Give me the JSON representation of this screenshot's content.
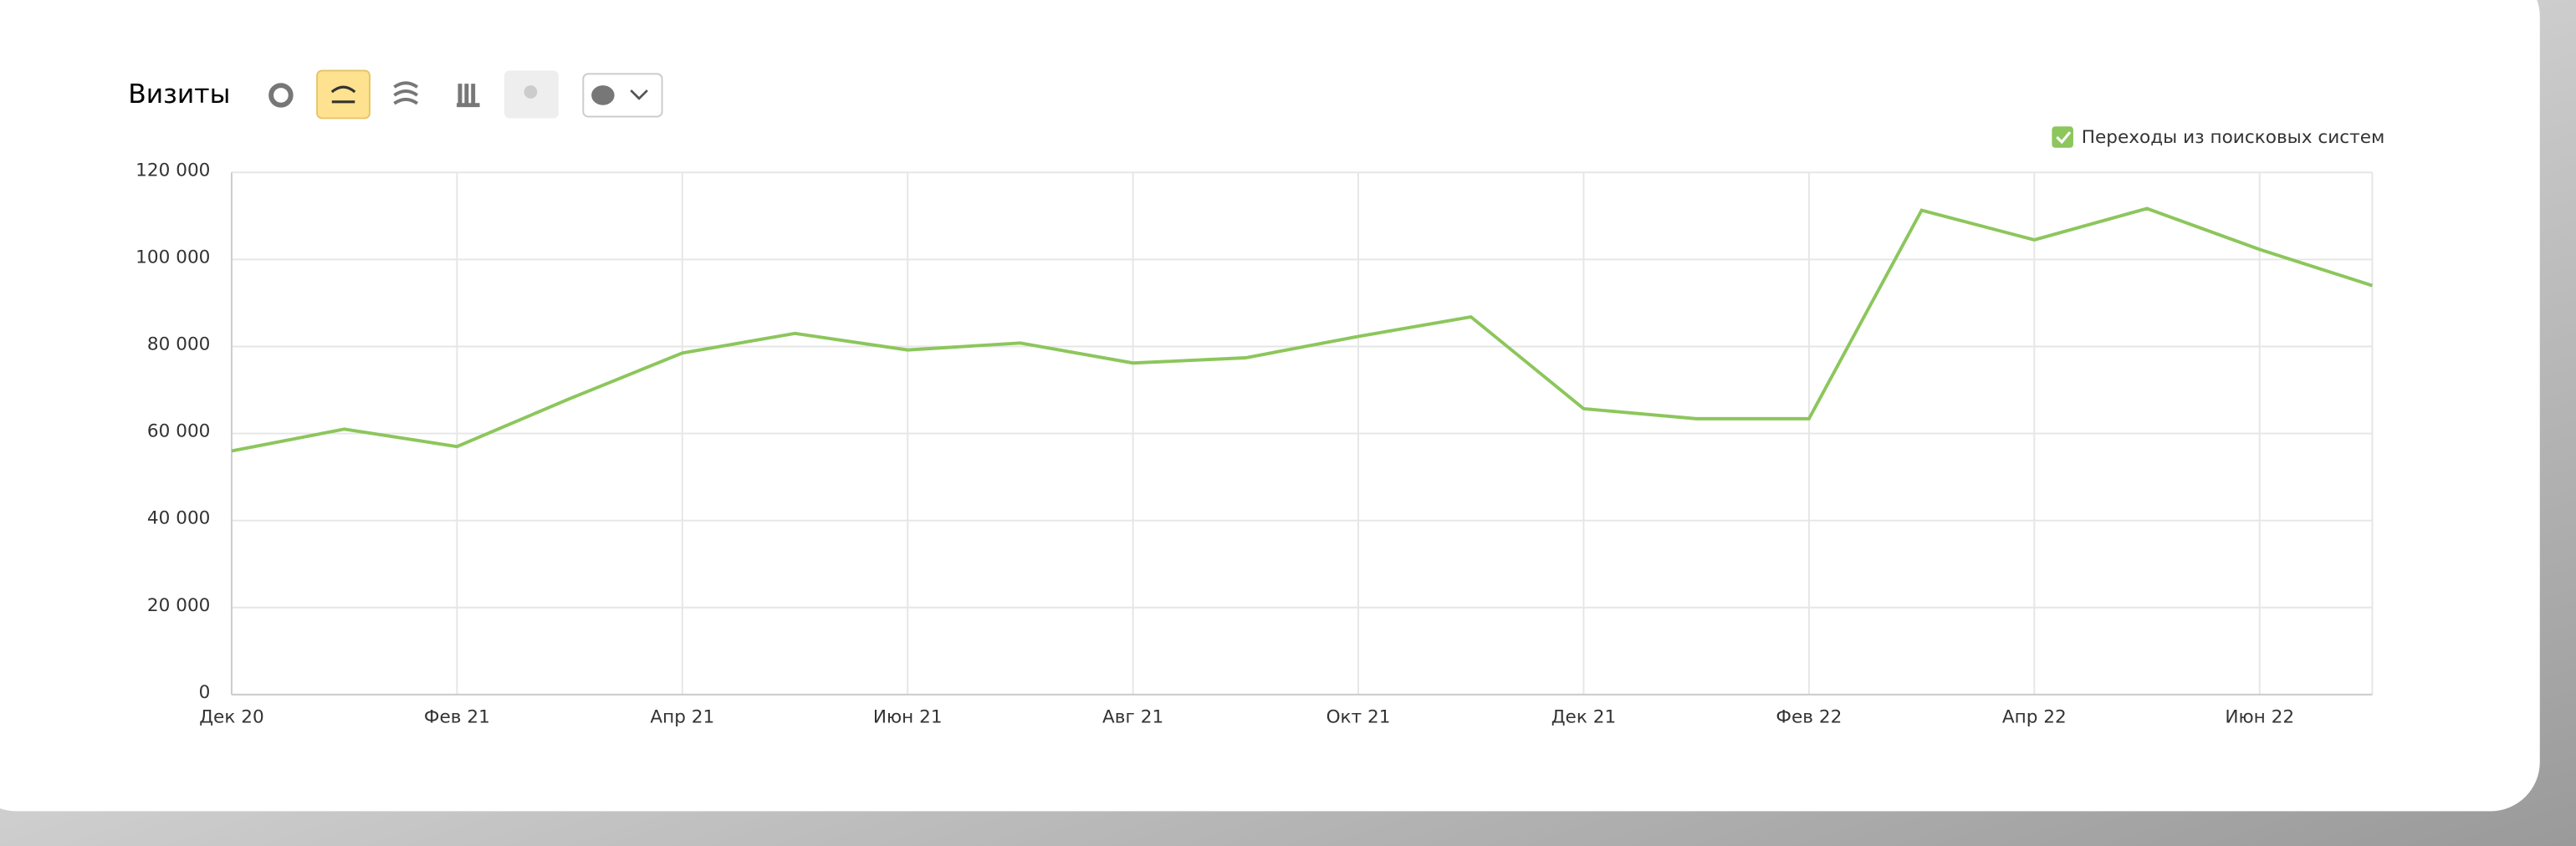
{
  "chart_data": {
    "type": "line",
    "title": "Визиты",
    "categories": [
      "Дек 20",
      null,
      "Фев 21",
      null,
      "Апр 21",
      null,
      "Июн 21",
      null,
      "Авг 21",
      null,
      "Окт 21",
      null,
      "Дек 21",
      null,
      "Фев 22",
      null,
      "Апр 22",
      null,
      "Июн 22",
      null
    ],
    "series": [
      {
        "name": "Переходы из поисковых систем",
        "color": "#8cc65c",
        "values": [
          56000,
          61000,
          57000,
          68000,
          78500,
          83000,
          79200,
          80800,
          76200,
          77400,
          82300,
          86800,
          65700,
          63400,
          63400,
          111300,
          104500,
          111700,
          102300,
          94000
        ]
      }
    ],
    "ylim": [
      0,
      120000
    ],
    "yticks": [
      0,
      {
        "value": 20000,
        "label": "20 000"
      },
      {
        "value": 40000,
        "label": "40 000"
      },
      {
        "value": 60000,
        "label": "60 000"
      },
      {
        "value": 80000,
        "label": "80 000"
      },
      {
        "value": 100000,
        "label": "100 000"
      },
      {
        "value": 120000,
        "label": "120 000"
      }
    ],
    "grid": true,
    "legend": "top-right"
  }
}
